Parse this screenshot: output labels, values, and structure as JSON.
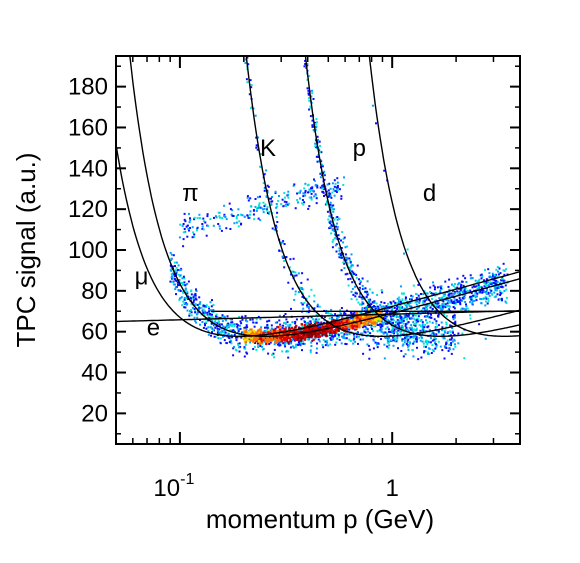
{
  "chart_data": {
    "type": "heatmap",
    "title": "",
    "xlabel": "momentum p (GeV)",
    "ylabel": "TPC signal (a.u.)",
    "x_scale": "log",
    "xlim": [
      0.05,
      4
    ],
    "ylim": [
      5,
      195
    ],
    "grid": false,
    "legend": "none",
    "x_ticks": [
      {
        "value": 0.1,
        "base": "10",
        "exponent": "-1"
      },
      {
        "value": 1,
        "label": "1"
      }
    ],
    "y_ticks": [
      20,
      40,
      60,
      80,
      100,
      120,
      140,
      160,
      180
    ],
    "curve_labels": [
      {
        "text": "e",
        "x": 0.075,
        "y": 62
      },
      {
        "text": "μ",
        "x": 0.066,
        "y": 87
      },
      {
        "text": "π",
        "x": 0.112,
        "y": 128
      },
      {
        "text": "K",
        "x": 0.26,
        "y": 150
      },
      {
        "text": "p",
        "x": 0.7,
        "y": 150
      },
      {
        "text": "d",
        "x": 1.5,
        "y": 128
      }
    ],
    "curves": [
      {
        "particle": "e",
        "mass": 0.000511
      },
      {
        "particle": "μ",
        "mass": 0.1057
      },
      {
        "particle": "π",
        "mass": 0.1396
      },
      {
        "particle": "K",
        "mass": 0.4937
      },
      {
        "particle": "p",
        "mass": 0.9383
      },
      {
        "particle": "d",
        "mass": 1.8756
      }
    ],
    "colormap": [
      "#0a0aff",
      "#00a0ff",
      "#00e8d0",
      "#30e040",
      "#ffe000",
      "#ff7000",
      "#e00000",
      "#8a0000"
    ]
  }
}
